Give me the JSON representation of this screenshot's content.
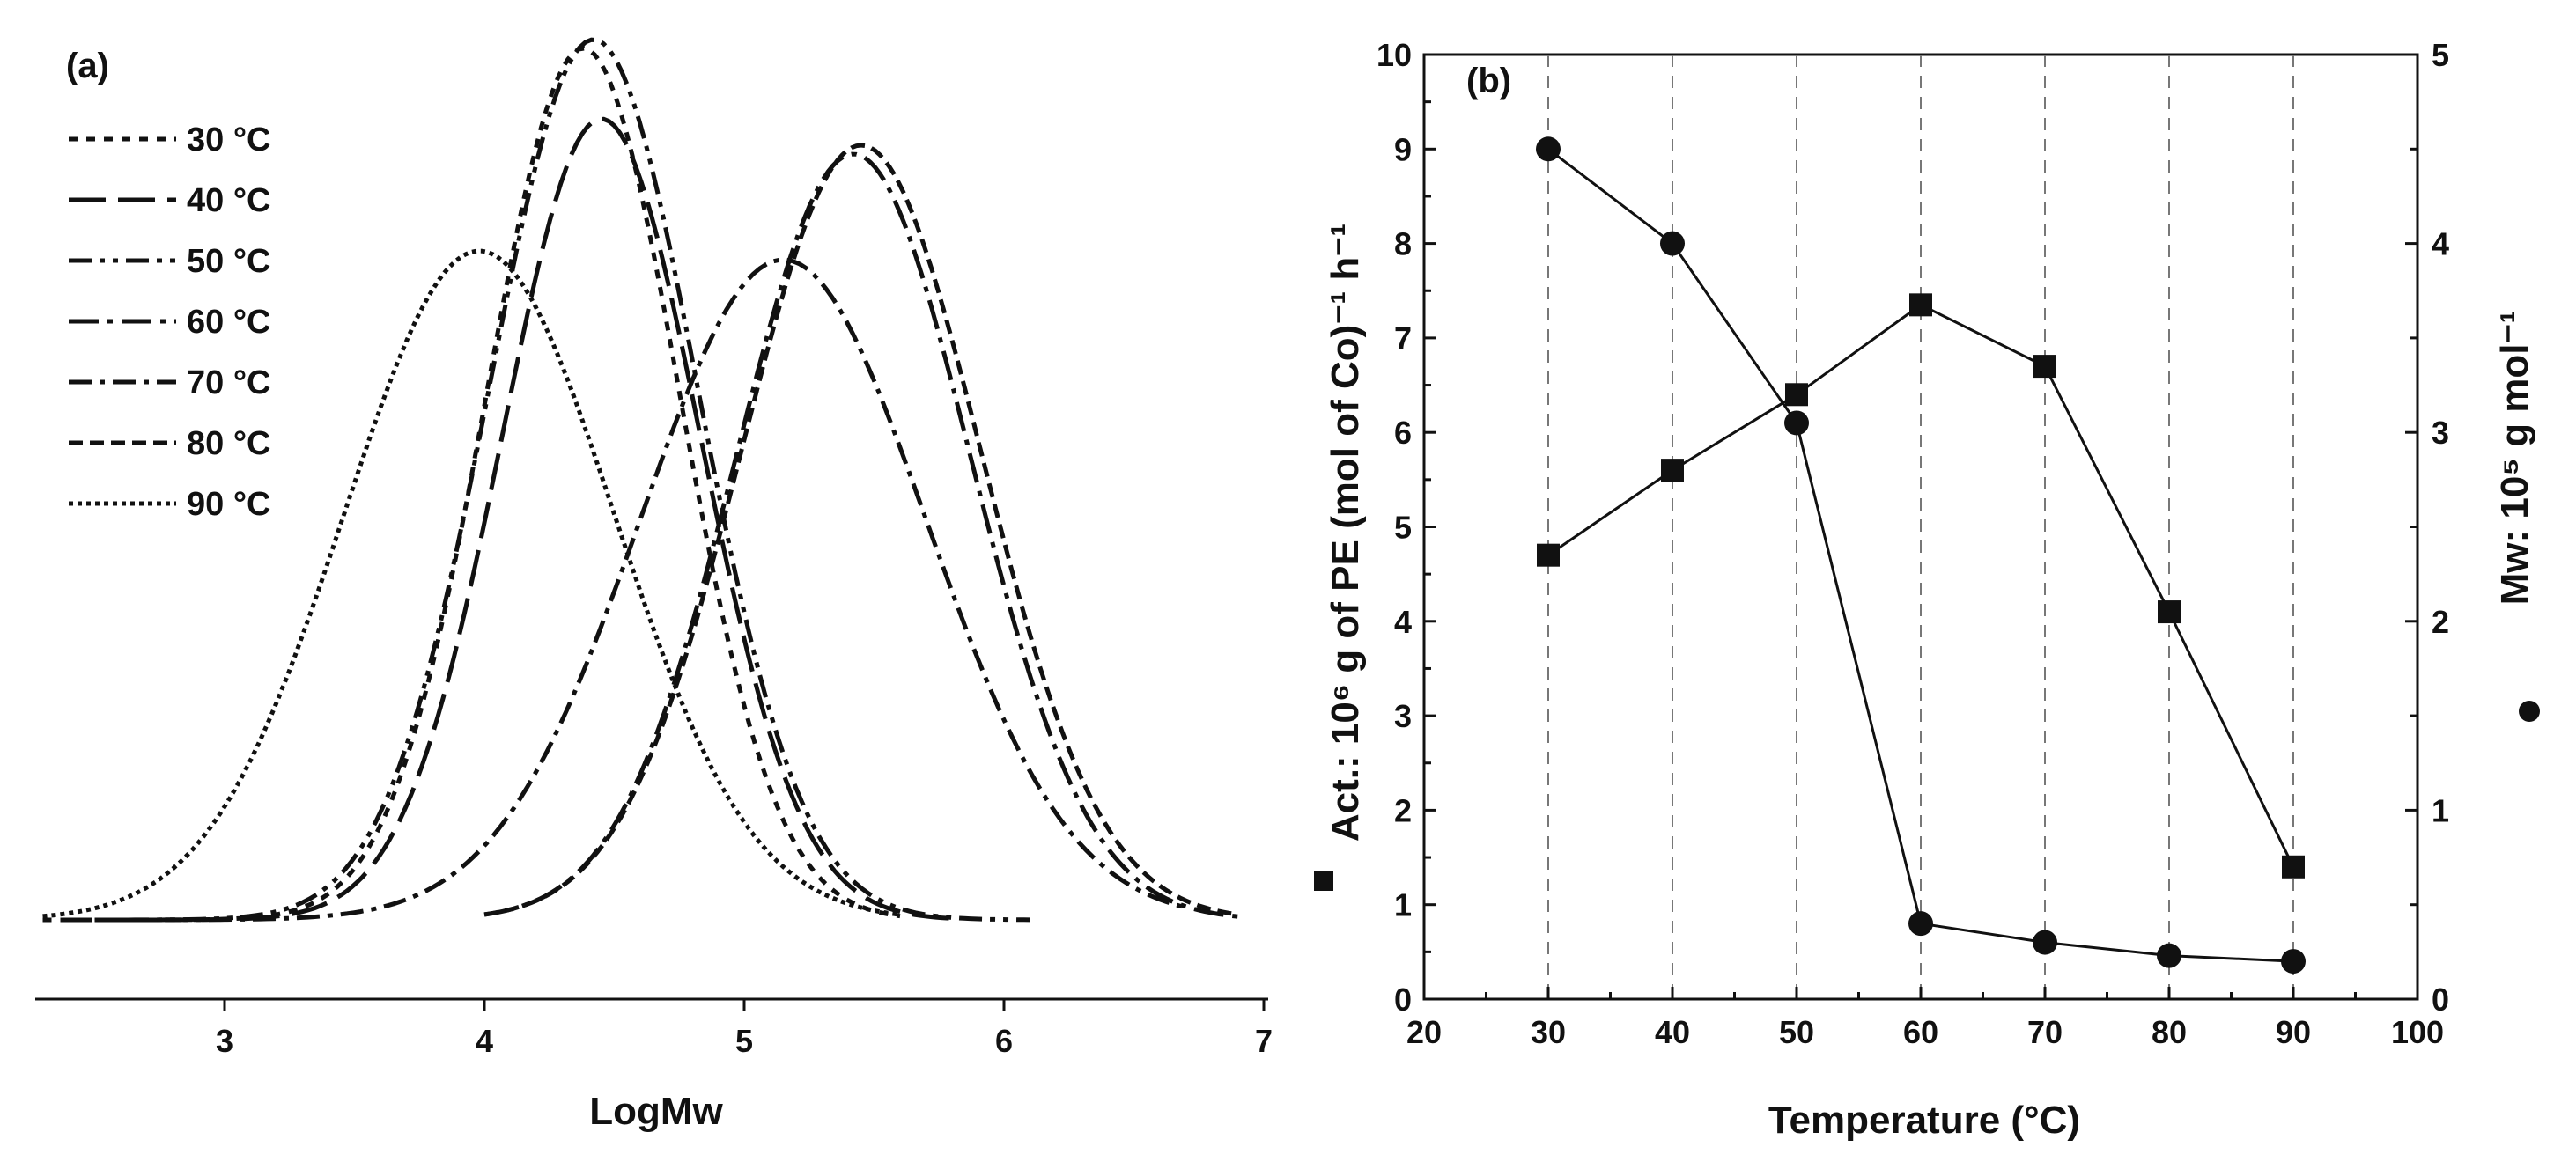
{
  "chart_data": [
    {
      "panel_label": "(a)",
      "type": "line",
      "xlabel": "LogMw",
      "ylabel": "",
      "xlim": [
        2.2,
        7.0
      ],
      "ylim": [
        -0.1,
        1.05
      ],
      "x_ticks": [
        3,
        4,
        5,
        6,
        7
      ],
      "grid": false,
      "legend_position": "top-left",
      "series": [
        {
          "name": "30 °C",
          "peak_x": 4.38,
          "peak_y": 0.99,
          "sigma": 0.37,
          "xmin": 2.3,
          "xmax": 5.6
        },
        {
          "name": "40 °C",
          "peak_x": 4.45,
          "peak_y": 0.91,
          "sigma": 0.38,
          "xmin": 2.5,
          "xmax": 5.8
        },
        {
          "name": "50 °C",
          "peak_x": 4.42,
          "peak_y": 1.0,
          "sigma": 0.4,
          "xmin": 2.4,
          "xmax": 6.1
        },
        {
          "name": "60 °C",
          "peak_x": 5.42,
          "peak_y": 0.87,
          "sigma": 0.45,
          "xmin": 4.0,
          "xmax": 6.9
        },
        {
          "name": "70 °C",
          "peak_x": 5.15,
          "peak_y": 0.75,
          "sigma": 0.55,
          "xmin": 2.6,
          "xmax": 6.7
        },
        {
          "name": "80 °C",
          "peak_x": 5.45,
          "peak_y": 0.88,
          "sigma": 0.46,
          "xmin": 4.0,
          "xmax": 6.9
        },
        {
          "name": "90 °C",
          "peak_x": 3.98,
          "peak_y": 0.76,
          "sigma": 0.52,
          "xmin": 2.3,
          "xmax": 5.6
        }
      ]
    },
    {
      "panel_label": "(b)",
      "type": "line",
      "xlabel": "Temperature (°C)",
      "ylabel": "Act.: 10⁶ g of PE (mol of Co)⁻¹ h⁻¹",
      "ylabel_right": "Mw: 10⁵ g mol⁻¹",
      "xlim": [
        20,
        100
      ],
      "ylim": [
        0,
        10
      ],
      "ylim_right": [
        0,
        5
      ],
      "x_ticks": [
        20,
        30,
        40,
        50,
        60,
        70,
        80,
        90,
        100
      ],
      "y_ticks": [
        0,
        1,
        2,
        3,
        4,
        5,
        6,
        7,
        8,
        9,
        10
      ],
      "y_ticks_right": [
        0,
        1,
        2,
        3,
        4,
        5
      ],
      "grid": "vertical dashed at data points",
      "x": [
        30,
        40,
        50,
        60,
        70,
        80,
        90
      ],
      "series": [
        {
          "name": "Act.",
          "marker": "square",
          "axis": "left",
          "values": [
            4.7,
            5.6,
            6.4,
            7.35,
            6.7,
            4.1,
            1.4
          ]
        },
        {
          "name": "Mw",
          "marker": "circle",
          "axis": "right",
          "values": [
            4.5,
            4.0,
            3.05,
            0.4,
            0.3,
            0.23,
            0.2
          ]
        }
      ]
    }
  ]
}
